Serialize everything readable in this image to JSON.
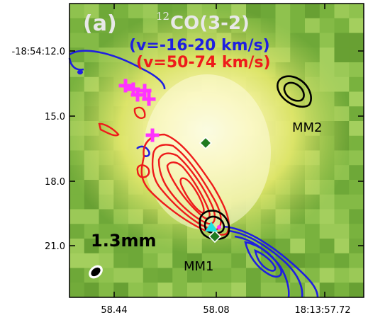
{
  "panel": {
    "letter": "(a)",
    "isotope": "12",
    "molecule": "CO(3-2)",
    "blue_range": "(v=-16-20 km/s)",
    "red_range": "(v=50-74 km/s)"
  },
  "labels": {
    "source1": "MM1",
    "source2": "MM2",
    "wavelength": "1.3mm"
  },
  "axes": {
    "y_ticks": [
      "-18:54:12.0",
      "15.0",
      "18.0",
      "21.0"
    ],
    "x_ticks": [
      "58.44",
      "58.08",
      "18:13:57.72"
    ]
  },
  "colors": {
    "blue_contours": "#1f1fe0",
    "red_contours": "#ee1b1b",
    "black_contours": "#000000",
    "magenta_crosses": "#ff33ff",
    "green_diamonds": "#1f7a1f",
    "cyan_triangle": "#22e0e0",
    "label_text": "#e8e8e8"
  }
}
